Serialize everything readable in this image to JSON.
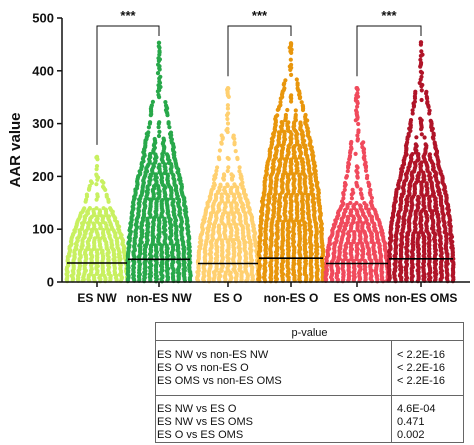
{
  "chart_data": {
    "type": "scatter",
    "subtype": "column-scatter",
    "ylabel": "AAR value",
    "ylim": [
      0,
      500
    ],
    "yticks": [
      0,
      100,
      200,
      300,
      400,
      500
    ],
    "grid": false,
    "legend": "none",
    "categories": [
      "ES NW",
      "non-ES NW",
      "ES O",
      "non-ES O",
      "ES OMS",
      "non-ES OMS"
    ],
    "series": [
      {
        "category": "ES NW",
        "color": "#c8f060",
        "median": 36,
        "max": 237,
        "dense_top": 140
      },
      {
        "category": "non-ES NW",
        "color": "#28a84a",
        "median": 43,
        "max": 453,
        "dense_top": 245
      },
      {
        "category": "ES O",
        "color": "#ffd070",
        "median": 35,
        "max": 367,
        "dense_top": 185
      },
      {
        "category": "non-ES O",
        "color": "#e8960c",
        "median": 45,
        "max": 452,
        "dense_top": 305
      },
      {
        "category": "ES OMS",
        "color": "#f04a5c",
        "median": 35,
        "max": 367,
        "dense_top": 150
      },
      {
        "category": "non-ES OMS",
        "color": "#b01428",
        "median": 44,
        "max": 454,
        "dense_top": 245
      }
    ],
    "significance": [
      {
        "from": "ES NW",
        "to": "non-ES NW",
        "label": "***"
      },
      {
        "from": "ES O",
        "to": "non-ES O",
        "label": "***"
      },
      {
        "from": "ES OMS",
        "to": "non-ES OMS",
        "label": "***"
      }
    ]
  },
  "table": {
    "header": "p-value",
    "group1": [
      {
        "comparison": "ES NW vs non-ES NW",
        "pvalue": "< 2.2E-16"
      },
      {
        "comparison": "ES O vs non-ES O",
        "pvalue": "< 2.2E-16"
      },
      {
        "comparison": "ES OMS vs non-ES OMS",
        "pvalue": "< 2.2E-16"
      }
    ],
    "group2": [
      {
        "comparison": "ES NW vs ES O",
        "pvalue": "4.6E-04"
      },
      {
        "comparison": "ES NW vs ES OMS",
        "pvalue": "0.471"
      },
      {
        "comparison": "ES O vs ES OMS",
        "pvalue": "0.002"
      }
    ]
  }
}
